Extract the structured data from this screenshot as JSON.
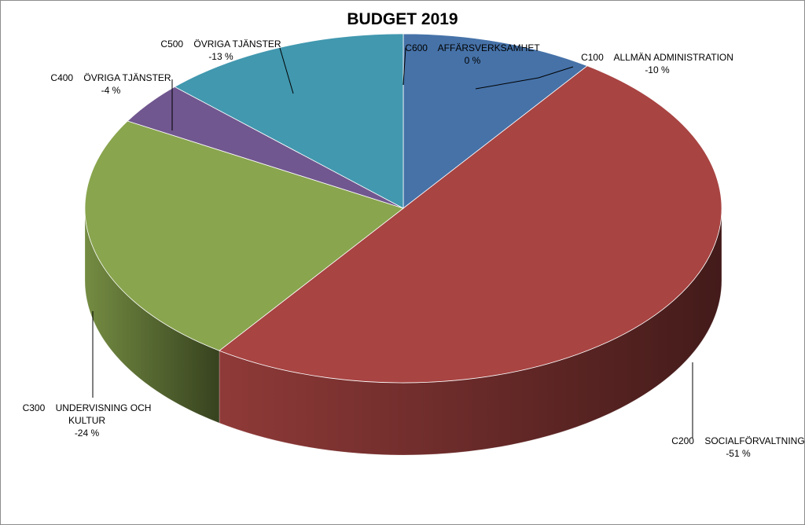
{
  "chart_data": {
    "type": "pie",
    "title": "BUDGET 2019",
    "categories": [
      "C100    ALLMÄN ADMINISTRATION",
      "C200    SOCIALFÖRVALTNING",
      "C300    UNDERVISNING OCH KULTUR",
      "C400    ÖVRIGA TJÄNSTER",
      "C500    ÖVRIGA TJÄNSTER",
      "C600    AFFÄRSVERKSAMHET"
    ],
    "values": [
      -10,
      -51,
      -24,
      -4,
      -13,
      0
    ],
    "value_labels": [
      "-10 %",
      "-51 %",
      "-24 %",
      "-4 %",
      "-13 %",
      "0 %"
    ],
    "colors": [
      "#4672a8",
      "#a84442",
      "#89a54e",
      "#71578f",
      "#4198af",
      "#e48a3a"
    ]
  }
}
